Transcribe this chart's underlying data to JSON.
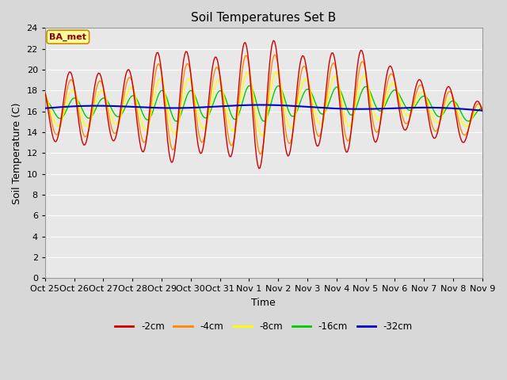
{
  "title": "Soil Temperatures Set B",
  "xlabel": "Time",
  "ylabel": "Soil Temperature (C)",
  "ylim": [
    0,
    24
  ],
  "yticks": [
    0,
    2,
    4,
    6,
    8,
    10,
    12,
    14,
    16,
    18,
    20,
    22,
    24
  ],
  "xtick_labels": [
    "Oct 25",
    "Oct 26",
    "Oct 27",
    "Oct 28",
    "Oct 29",
    "Oct 30",
    "Oct 31",
    "Nov 1",
    "Nov 2",
    "Nov 3",
    "Nov 4",
    "Nov 5",
    "Nov 6",
    "Nov 7",
    "Nov 8",
    "Nov 9"
  ],
  "legend_labels": [
    "-2cm",
    "-4cm",
    "-8cm",
    "-16cm",
    "-32cm"
  ],
  "line_colors": [
    "#cc0000",
    "#ff8800",
    "#ffff00",
    "#00cc00",
    "#0000cc"
  ],
  "annotation_text": "BA_met",
  "annotation_bg": "#ffff99",
  "annotation_border": "#cc8800",
  "fig_bg": "#d8d8d8",
  "plot_bg": "#e8e8e8",
  "grid_color": "#ffffff",
  "title_fontsize": 11,
  "label_fontsize": 9,
  "tick_fontsize": 8
}
